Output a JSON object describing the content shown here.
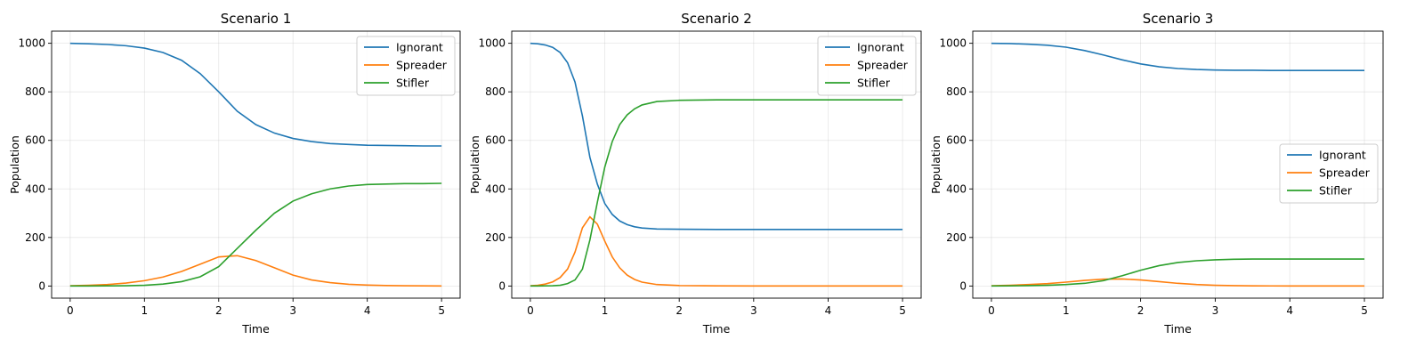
{
  "chart_data": [
    {
      "type": "line",
      "title": "Scenario 1",
      "xlabel": "Time",
      "ylabel": "Population",
      "xlim": [
        -0.25,
        5.25
      ],
      "ylim": [
        -50,
        1050
      ],
      "xticks": [
        0,
        1,
        2,
        3,
        4,
        5
      ],
      "yticks": [
        0,
        200,
        400,
        600,
        800,
        1000
      ],
      "grid": true,
      "legend": "top-right",
      "x": [
        0,
        0.25,
        0.5,
        0.75,
        1.0,
        1.25,
        1.5,
        1.75,
        2.0,
        2.25,
        2.5,
        2.75,
        3.0,
        3.25,
        3.5,
        3.75,
        4.0,
        4.25,
        4.5,
        4.75,
        5.0
      ],
      "series": [
        {
          "name": "Ignorant",
          "color": "#1f77b4",
          "values": [
            1000,
            998,
            995,
            990,
            980,
            962,
            930,
            875,
            800,
            720,
            665,
            630,
            608,
            595,
            587,
            583,
            580,
            579,
            578,
            577,
            577
          ]
        },
        {
          "name": "Spreader",
          "color": "#ff7f0e",
          "values": [
            1,
            3,
            6,
            12,
            22,
            37,
            60,
            90,
            120,
            125,
            105,
            75,
            45,
            25,
            14,
            7,
            4,
            2,
            1,
            0.5,
            0.3
          ]
        },
        {
          "name": "Stifler",
          "color": "#2ca02c",
          "values": [
            0,
            0,
            0.5,
            1,
            3,
            8,
            18,
            38,
            80,
            155,
            230,
            300,
            350,
            380,
            400,
            412,
            418,
            420,
            422,
            422,
            423
          ]
        }
      ]
    },
    {
      "type": "line",
      "title": "Scenario 2",
      "xlabel": "Time",
      "ylabel": "Population",
      "xlim": [
        -0.25,
        5.25
      ],
      "ylim": [
        -50,
        1050
      ],
      "xticks": [
        0,
        1,
        2,
        3,
        4,
        5
      ],
      "yticks": [
        0,
        200,
        400,
        600,
        800,
        1000
      ],
      "grid": true,
      "legend": "top-right",
      "x": [
        0,
        0.1,
        0.2,
        0.3,
        0.4,
        0.5,
        0.6,
        0.7,
        0.8,
        0.9,
        1.0,
        1.1,
        1.2,
        1.3,
        1.4,
        1.5,
        1.7,
        2.0,
        2.5,
        3.0,
        3.5,
        4.0,
        4.5,
        5.0
      ],
      "series": [
        {
          "name": "Ignorant",
          "color": "#1f77b4",
          "values": [
            1000,
            998,
            993,
            983,
            962,
            920,
            840,
            700,
            530,
            420,
            340,
            295,
            268,
            253,
            244,
            239,
            235,
            234,
            233,
            233,
            233,
            233,
            233,
            233
          ]
        },
        {
          "name": "Spreader",
          "color": "#ff7f0e",
          "values": [
            1,
            3,
            8,
            17,
            35,
            70,
            140,
            240,
            285,
            255,
            185,
            120,
            75,
            45,
            27,
            16,
            6,
            2,
            0.5,
            0.2,
            0,
            0,
            0,
            0
          ]
        },
        {
          "name": "Stifler",
          "color": "#2ca02c",
          "values": [
            0,
            0.2,
            0.5,
            1,
            3,
            10,
            25,
            70,
            190,
            345,
            490,
            595,
            665,
            705,
            730,
            746,
            760,
            765,
            767,
            767,
            767,
            767,
            767,
            767
          ]
        }
      ]
    },
    {
      "type": "line",
      "title": "Scenario 3",
      "xlabel": "Time",
      "ylabel": "Population",
      "xlim": [
        -0.25,
        5.25
      ],
      "ylim": [
        -50,
        1050
      ],
      "xticks": [
        0,
        1,
        2,
        3,
        4,
        5
      ],
      "yticks": [
        0,
        200,
        400,
        600,
        800,
        1000
      ],
      "grid": true,
      "legend": "center-right",
      "x": [
        0,
        0.25,
        0.5,
        0.75,
        1.0,
        1.25,
        1.5,
        1.75,
        2.0,
        2.25,
        2.5,
        2.75,
        3.0,
        3.25,
        3.5,
        3.75,
        4.0,
        4.5,
        5.0
      ],
      "series": [
        {
          "name": "Ignorant",
          "color": "#1f77b4",
          "values": [
            1000,
            999,
            996,
            992,
            984,
            970,
            952,
            932,
            915,
            903,
            896,
            892,
            890,
            889,
            889,
            888,
            888,
            888,
            888
          ]
        },
        {
          "name": "Spreader",
          "color": "#ff7f0e",
          "values": [
            1,
            3,
            6,
            10,
            16,
            23,
            28,
            29,
            25,
            18,
            11,
            6,
            3,
            1.5,
            0.8,
            0.4,
            0.2,
            0,
            0
          ]
        },
        {
          "name": "Stifler",
          "color": "#2ca02c",
          "values": [
            0,
            0.5,
            1.5,
            3,
            6,
            11,
            22,
            42,
            65,
            84,
            97,
            104,
            108,
            110,
            111,
            111,
            111,
            111,
            111
          ]
        }
      ]
    }
  ]
}
